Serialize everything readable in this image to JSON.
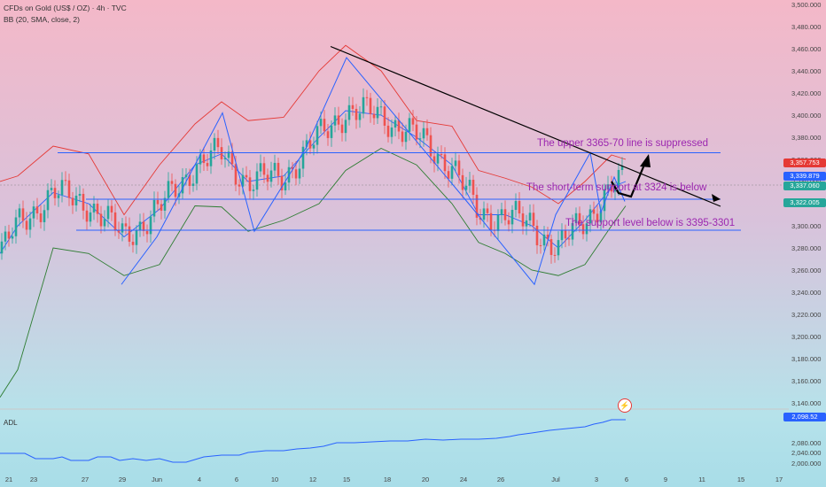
{
  "header": {
    "symbol_line": "CFDs on Gold (US$ / OZ) · 4h · TVC",
    "indicator_line": "BB (20, SMA, close, 2)"
  },
  "adl_panel": {
    "label": "ADL",
    "value_tag": "2,098.52",
    "y_ticks": [
      "2,080.000",
      "2,040.000",
      "2,000.000"
    ]
  },
  "price_tags": [
    {
      "text": "3,357.753",
      "color": "#e53935"
    },
    {
      "text": "3,339.879",
      "color": "#2962ff"
    },
    {
      "text": "3,337.060",
      "color": "#26a69a"
    },
    {
      "text": "3,322.005",
      "color": "#26a69a"
    }
  ],
  "annotations": [
    "The upper 3365-70 line is suppressed",
    "The short-term support at 3324 is below",
    "The support level below is 3395-3301"
  ],
  "colors": {
    "up": "#26a69a",
    "down": "#ef5350",
    "bb_upper": "#e53935",
    "bb_basis": "#2962ff",
    "bb_lower": "#2e7d32",
    "annotation": "#9c27b0",
    "trendline": "#000000",
    "level_lines": "#2962ff"
  },
  "chart_data": {
    "type": "candlestick",
    "title": "CFDs on Gold (US$ / OZ) · 4h · TVC",
    "x_tick_labels": [
      "21",
      "23",
      "27",
      "29",
      "Jun",
      "4",
      "6",
      "10",
      "12",
      "15",
      "18",
      "20",
      "24",
      "26",
      "Jul",
      "3",
      "6",
      "9",
      "11",
      "15",
      "17"
    ],
    "y_tick_labels": [
      "3,500.000",
      "3,480.000",
      "3,460.000",
      "3,440.000",
      "3,420.000",
      "3,400.000",
      "3,380.000",
      "3,360.000",
      "3,340.000",
      "3,320.000",
      "3,300.000",
      "3,280.000",
      "3,260.000",
      "3,240.000",
      "3,220.000",
      "3,200.000",
      "3,180.000",
      "3,160.000",
      "3,140.000"
    ],
    "ylim": [
      3140,
      3500
    ],
    "horizontal_levels": [
      3366,
      3324,
      3296
    ],
    "swing_path": [
      {
        "x": 29,
        "y": 3247
      },
      {
        "x": "Jun",
        "y": 3290
      },
      {
        "x": 4,
        "y": 3402
      },
      {
        "x": 6,
        "y": 3295
      },
      {
        "x": 12,
        "y": 3370
      },
      {
        "x": 15,
        "y": 3452
      },
      {
        "x": 24,
        "y": 3316
      },
      {
        "x": 26,
        "y": 3247
      },
      {
        "x": "Jul",
        "y": 3310
      },
      {
        "x": 3,
        "y": 3366
      },
      {
        "x": 3,
        "y": 3312
      },
      {
        "x": 6,
        "y": 3344
      },
      {
        "x": 6,
        "y": 3322
      }
    ],
    "trendline": {
      "from": {
        "x": 12,
        "y": 3462
      },
      "to": {
        "x": 9,
        "y": 3340
      }
    },
    "projection": [
      {
        "x": 6,
        "y": 3326
      },
      {
        "x": 9,
        "y": 3353
      }
    ],
    "support_arrow_end": {
      "x": 11,
      "y": 3322
    }
  }
}
